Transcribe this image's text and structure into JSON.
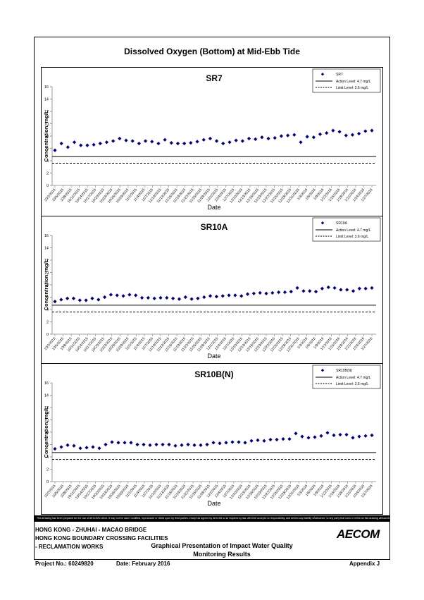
{
  "page": {
    "main_title": "Dissolved Oxygen (Bottom) at Mid-Ebb Tide",
    "disclaimer": "This Drawing has been prepared for the use of AECOM's client. It may not be used, modified, reproduced or relied upon by third parties, except as agreed by AECOM or as required by law. AECOM accepts no responsibility, and denies any liability whatsoever, to any party that uses or relies on this drawing without AECOM's express written consent.",
    "project_lines": [
      "HONG KONG - ZHUHAI - MACAO BRIDGE",
      "HONG KONG BOUNDARY CROSSING FACILITIES",
      "- RECLAMATION WORKS"
    ],
    "presentation_title_1": "Graphical Presentation of Impact Water Quality",
    "presentation_title_2": "Monitoring Results",
    "project_no": "Project No.: 60249820",
    "date": "Date: February 2016",
    "appendix": "Appendix J",
    "logo": "AECOM"
  },
  "chart_data": [
    {
      "type": "scatter",
      "title": "SR7",
      "xlabel": "Date",
      "ylabel": "Concentration, mg/L",
      "ylim": [
        0,
        16
      ],
      "yticks": [
        0,
        2,
        4,
        6,
        8,
        10,
        12,
        14,
        16
      ],
      "x_tick_labels": [
        "10/2/2015",
        "10/5/2015",
        "10/8/2015",
        "10/11/2015",
        "10/14/2015",
        "10/17/2015",
        "10/20/2015",
        "10/23/2015",
        "10/26/2015",
        "10/29/2015",
        "11/1/2015",
        "11/4/2015",
        "11/7/2015",
        "11/10/2015",
        "11/13/2015",
        "11/16/2015",
        "11/19/2015",
        "11/22/2015",
        "11/25/2015",
        "11/28/2015",
        "12/1/2015",
        "12/4/2015",
        "12/7/2015",
        "12/10/2015",
        "12/13/2015",
        "12/16/2015",
        "12/19/2015",
        "12/22/2015",
        "12/25/2015",
        "12/28/2015",
        "12/31/2015",
        "1/3/2016",
        "1/6/2016",
        "1/9/2016",
        "1/12/2016",
        "1/15/2016",
        "1/18/2016",
        "1/21/2016",
        "1/24/2016",
        "1/27/2016"
      ],
      "legend": [
        "SR7",
        "Action Level: 4.7 mg/L",
        "Limit Level: 3.6 mg/L"
      ],
      "legend_position": "top-right",
      "action_level": 4.7,
      "limit_level": 3.6,
      "values": [
        5.7,
        6.8,
        6.2,
        7.0,
        6.5,
        6.5,
        6.6,
        6.8,
        7.0,
        7.2,
        7.6,
        7.3,
        7.2,
        6.8,
        7.2,
        7.1,
        6.8,
        7.4,
        6.9,
        6.8,
        6.8,
        6.9,
        7.1,
        7.4,
        7.6,
        7.2,
        6.8,
        7.0,
        7.3,
        7.2,
        7.6,
        7.5,
        7.8,
        7.6,
        7.7,
        8.0,
        8.1,
        8.2,
        7.0,
        7.9,
        7.8,
        8.3,
        8.5,
        8.9,
        8.7,
        8.1,
        8.2,
        8.4,
        8.8,
        8.9
      ]
    },
    {
      "type": "scatter",
      "title": "SR10A",
      "xlabel": "Date",
      "ylabel": "Concentration, mg/L",
      "ylim": [
        0,
        16
      ],
      "yticks": [
        0,
        2,
        4,
        6,
        8,
        10,
        12,
        14,
        16
      ],
      "x_tick_labels": [
        "10/2/2015",
        "10/5/2015",
        "10/8/2015",
        "10/11/2015",
        "10/14/2015",
        "10/17/2015",
        "10/20/2015",
        "10/23/2015",
        "10/26/2015",
        "10/29/2015",
        "11/1/2015",
        "11/4/2015",
        "11/7/2015",
        "11/10/2015",
        "11/13/2015",
        "11/16/2015",
        "11/19/2015",
        "11/22/2015",
        "11/25/2015",
        "11/28/2015",
        "12/1/2015",
        "12/4/2015",
        "12/7/2015",
        "12/10/2015",
        "12/13/2015",
        "12/16/2015",
        "12/19/2015",
        "12/22/2015",
        "12/25/2015",
        "12/28/2015",
        "12/31/2015",
        "1/3/2016",
        "1/6/2016",
        "1/9/2016",
        "1/12/2016",
        "1/15/2016",
        "1/18/2016",
        "1/21/2016",
        "1/24/2016",
        "1/27/2016"
      ],
      "legend": [
        "SR10A",
        "Action Level: 4.7 mg/L",
        "Limit Level: 3.6 mg/L"
      ],
      "legend_position": "top-right",
      "action_level": 4.7,
      "limit_level": 3.6,
      "values": [
        5.3,
        5.6,
        5.8,
        5.8,
        5.5,
        5.5,
        5.8,
        5.6,
        6.0,
        6.4,
        6.3,
        6.2,
        6.4,
        6.3,
        5.9,
        5.9,
        5.8,
        5.9,
        5.9,
        5.8,
        5.7,
        6.0,
        5.7,
        5.8,
        6.0,
        6.2,
        6.1,
        6.2,
        6.3,
        6.3,
        6.2,
        6.5,
        6.6,
        6.7,
        6.6,
        6.7,
        6.8,
        6.8,
        6.9,
        7.5,
        7.0,
        7.0,
        6.9,
        7.4,
        7.6,
        7.5,
        7.2,
        7.2,
        7.0,
        7.4,
        7.4,
        7.5
      ]
    },
    {
      "type": "scatter",
      "title": "SR10B(N)",
      "xlabel": "Date",
      "ylabel": "Concentration, mg/L",
      "ylim": [
        0,
        16
      ],
      "yticks": [
        0,
        2,
        4,
        6,
        8,
        10,
        12,
        14,
        16
      ],
      "x_tick_labels": [
        "10/2/2015",
        "10/5/2015",
        "10/8/2015",
        "10/11/2015",
        "10/14/2015",
        "10/17/2015",
        "10/20/2015",
        "10/23/2015",
        "10/26/2015",
        "10/29/2015",
        "11/1/2015",
        "11/4/2015",
        "11/7/2015",
        "11/10/2015",
        "11/13/2015",
        "11/16/2015",
        "11/19/2015",
        "11/22/2015",
        "11/25/2015",
        "11/28/2015",
        "12/1/2015",
        "12/4/2015",
        "12/7/2015",
        "12/10/2015",
        "12/13/2015",
        "12/16/2015",
        "12/19/2015",
        "12/22/2015",
        "12/25/2015",
        "12/28/2015",
        "12/31/2015",
        "1/3/2016",
        "1/6/2016",
        "1/9/2016",
        "1/12/2016",
        "1/15/2016",
        "1/18/2016",
        "1/21/2016",
        "1/24/2016",
        "1/27/2016"
      ],
      "legend": [
        "SR10B(N)",
        "Action Level: 4.7 mg/L",
        "Limit Level: 3.6 mg/L"
      ],
      "legend_position": "top-right",
      "action_level": 4.7,
      "limit_level": 3.6,
      "values": [
        5.3,
        5.6,
        5.9,
        5.8,
        5.4,
        5.5,
        5.6,
        5.4,
        6.0,
        6.4,
        6.3,
        6.3,
        6.3,
        6.0,
        6.0,
        5.9,
        6.0,
        6.0,
        6.0,
        5.8,
        5.9,
        6.0,
        5.9,
        5.9,
        6.0,
        6.3,
        6.2,
        6.3,
        6.4,
        6.4,
        6.3,
        6.6,
        6.7,
        6.6,
        6.8,
        6.8,
        6.9,
        6.9,
        7.8,
        7.3,
        7.1,
        7.2,
        7.4,
        7.9,
        7.5,
        7.6,
        7.6,
        7.1,
        7.3,
        7.4,
        7.5
      ]
    }
  ]
}
